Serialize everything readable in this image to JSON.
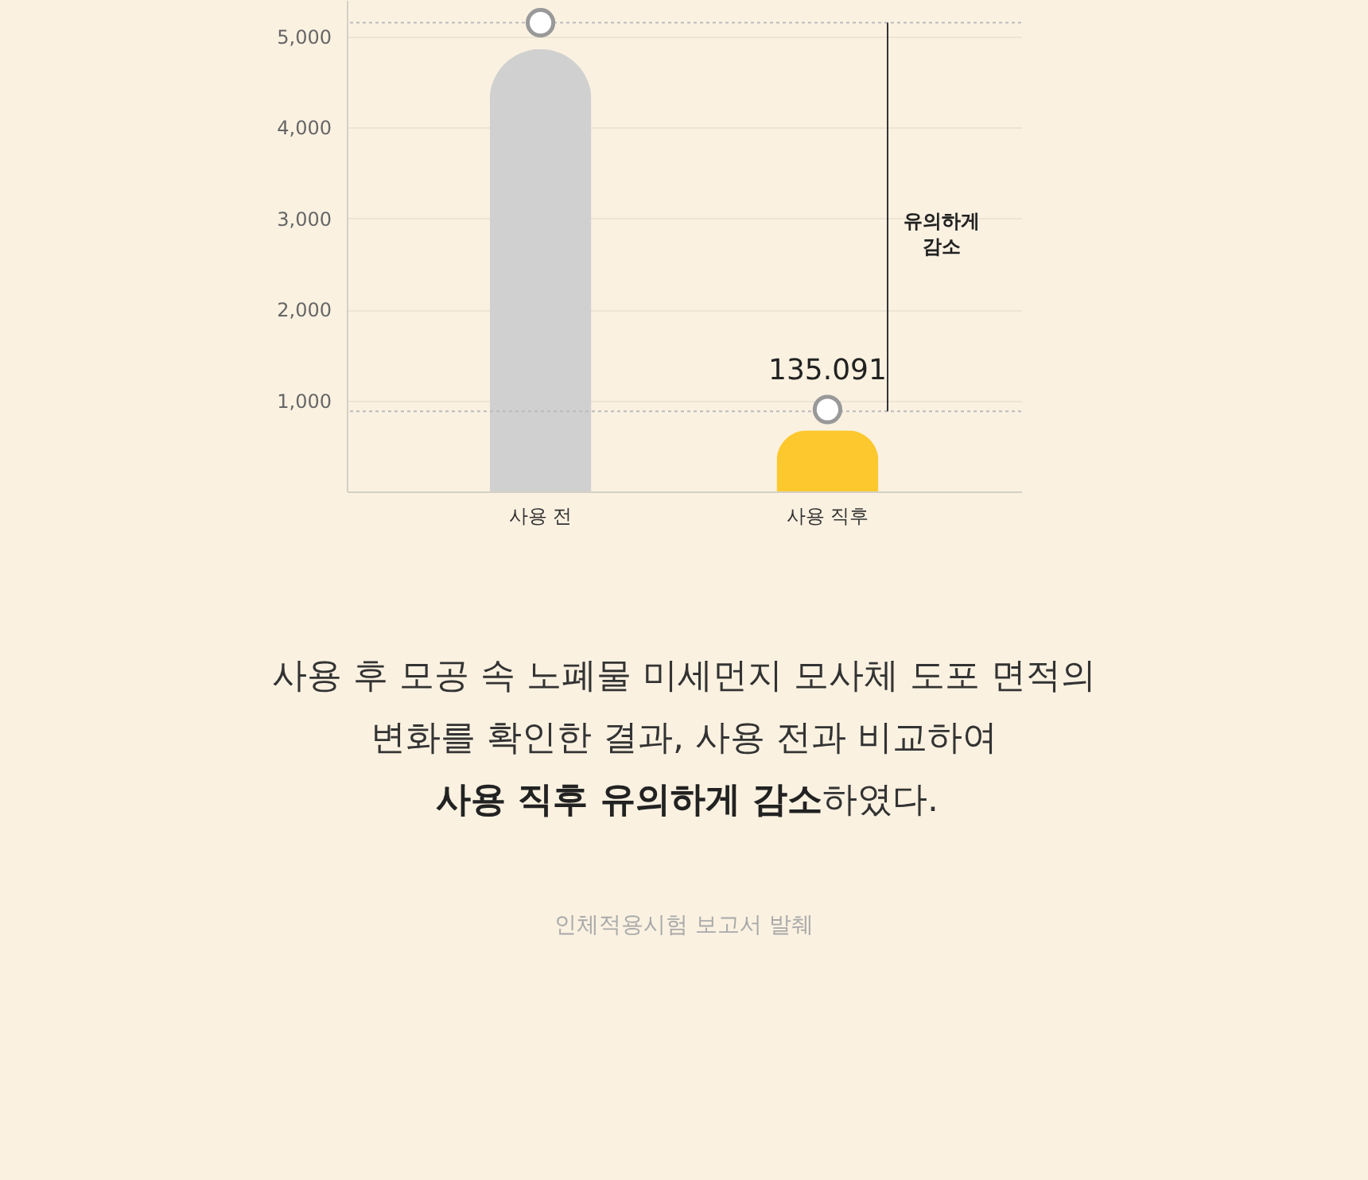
{
  "chart_data": {
    "type": "bar",
    "categories": [
      "사용 전",
      "사용 직후"
    ],
    "series": [
      {
        "type": "bar",
        "colors": [
          "#d0d0d0",
          "#fcc82e"
        ],
        "values": [
          4860,
          670
        ]
      },
      {
        "type": "scatter",
        "color": "#ffffff",
        "values": [
          5150,
          900
        ]
      }
    ],
    "ylim": [
      0,
      5400
    ],
    "yticks": [
      {
        "value": 1000,
        "label": "1,000"
      },
      {
        "value": 2000,
        "label": "2,000"
      },
      {
        "value": 3000,
        "label": "3,000"
      },
      {
        "value": 4000,
        "label": "4,000"
      },
      {
        "value": 5000,
        "label": "5,000"
      }
    ],
    "grid": "y",
    "ref_lines": [
      {
        "axis": "y",
        "value": 5150,
        "color": "#bbbbbb",
        "line_style": "dotted"
      },
      {
        "axis": "y",
        "value": 880,
        "color": "#bbbbbb",
        "line_style": "dotted"
      }
    ],
    "annotations": [
      {
        "text": "135.091",
        "x": "사용 직후",
        "y": 900
      },
      "유의하게\n감소",
      "사용 후 모공 속 노폐물 미세먼지 모사체 도포 면적의",
      "변화를 확인한 결과, 사용 전과 비교하여",
      "사용 직후 유의하게 감소",
      "하였다.",
      "인체적용시험 보고서 발췌"
    ]
  }
}
